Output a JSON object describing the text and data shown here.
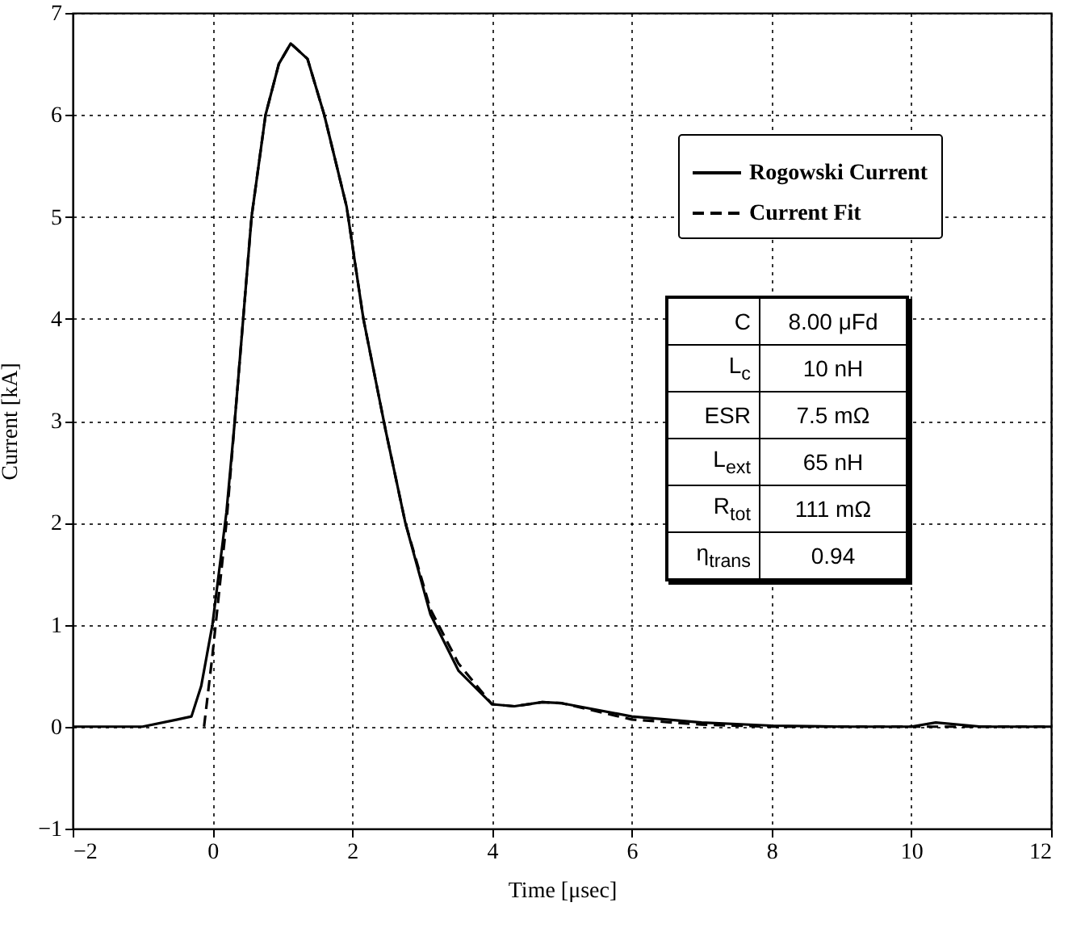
{
  "chart_data": {
    "type": "line",
    "xlabel": "Time [μsec]",
    "ylabel": "Current [kA]",
    "xlim": [
      -2,
      12
    ],
    "ylim": [
      -1,
      7
    ],
    "xticks": [
      -2,
      0,
      2,
      4,
      6,
      8,
      10,
      12
    ],
    "yticks": [
      -1,
      0,
      1,
      2,
      3,
      4,
      5,
      6,
      7
    ],
    "grid": true,
    "legend": "top right",
    "marker": "none",
    "series": [
      {
        "name": "Rogowski Current",
        "color": "#000000",
        "line_style": "solid",
        "x": [
          -2,
          -1,
          -0.5,
          -0.3,
          -0.16,
          0,
          0.2,
          0.32,
          0.44,
          0.56,
          0.76,
          0.95,
          1.12,
          1.36,
          1.6,
          1.92,
          2.16,
          2.48,
          2.76,
          3.12,
          3.52,
          4,
          4.32,
          4.72,
          5,
          6,
          7,
          8,
          9,
          10,
          10.35,
          11,
          12
        ],
        "values": [
          0,
          0,
          0.07,
          0.1,
          0.4,
          1.0,
          2.1,
          3,
          4,
          5,
          6,
          6.5,
          6.7,
          6.55,
          6,
          5.1,
          4,
          2.9,
          2,
          1.1,
          0.55,
          0.22,
          0.2,
          0.24,
          0.23,
          0.1,
          0.04,
          0.01,
          0,
          0,
          0.04,
          0,
          0
        ]
      },
      {
        "name": "Current Fit",
        "color": "#000000",
        "line_style": "dashed",
        "x": [
          -0.12,
          0,
          0.2,
          0.32,
          0.44,
          0.56,
          0.76,
          0.95,
          1.12,
          1.36,
          1.6,
          1.92,
          2.16,
          2.48,
          2.76,
          3.12,
          3.52,
          4,
          4.32,
          4.72,
          5,
          6,
          7,
          8,
          9,
          10,
          11,
          12
        ],
        "values": [
          0,
          0.7,
          2.0,
          3,
          4,
          5,
          6,
          6.5,
          6.7,
          6.55,
          6,
          5.1,
          4,
          2.9,
          2,
          1.15,
          0.62,
          0.22,
          0.2,
          0.24,
          0.23,
          0.07,
          0.02,
          0,
          0,
          0,
          0,
          0
        ]
      }
    ],
    "annotations": [
      "C",
      "8.00 μFd",
      "L$_{c}$",
      "10 nH",
      "ESR",
      "7.5 mΩ",
      "L$_{ext}$",
      "65 nH",
      "R$_{tot}$",
      "111 mΩ",
      "η$_{trans}$",
      "0.94"
    ]
  }
}
